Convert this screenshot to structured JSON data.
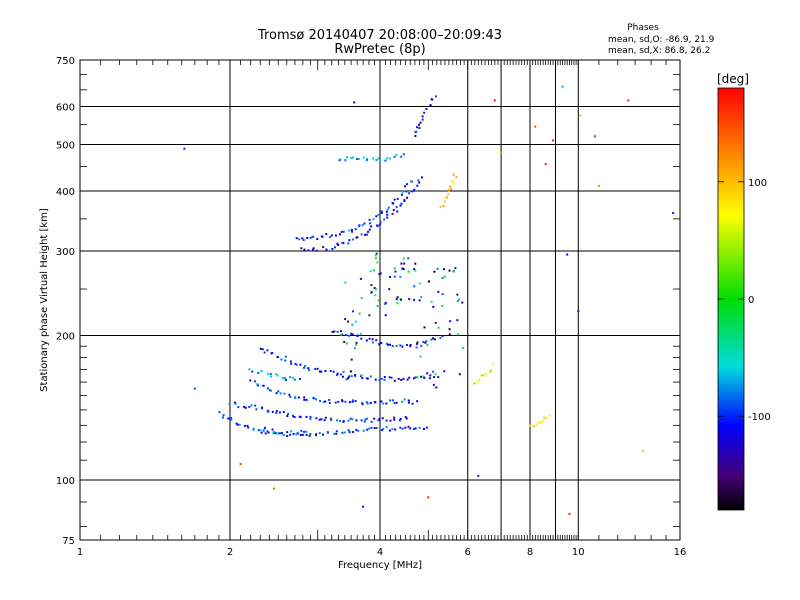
{
  "chart_data": {
    "type": "scatter",
    "title": "Tromsø 20140407 20:08:00–20:09:43",
    "subtitle": "RwPretec (8p)",
    "xlabel": "Frequency [MHz]",
    "ylabel": "Stationary phase Virtual Height [km]",
    "x_scale": "log",
    "y_scale": "log",
    "xlim": [
      1,
      16
    ],
    "ylim": [
      75,
      750
    ],
    "x_ticks": [
      1,
      2,
      4,
      6,
      8,
      10,
      16
    ],
    "y_ticks": [
      75,
      100,
      200,
      300,
      400,
      500,
      600,
      750
    ],
    "grid": true,
    "stats": {
      "header": "Phases",
      "line_o": "mean, sd,O: -86.9, 21.9",
      "line_x": "mean, sd,X:  86.8, 26.2"
    },
    "colorbar": {
      "label": "[deg]",
      "range": [
        -180,
        180
      ],
      "ticks": [
        100,
        0,
        -100
      ]
    },
    "traces": [
      {
        "x": [
          1.9,
          2.1,
          2.3,
          2.6,
          3.0,
          3.4,
          3.8,
          4.2,
          4.6,
          5.0
        ],
        "y": [
          138,
          130,
          126,
          124,
          125,
          126,
          127,
          128,
          128,
          128
        ],
        "phase": -100
      },
      {
        "x": [
          2.0,
          2.3,
          2.6,
          3.0,
          3.4,
          3.8,
          4.2,
          4.6
        ],
        "y": [
          144,
          141,
          137,
          134,
          133,
          133,
          134,
          134
        ],
        "phase": -105
      },
      {
        "x": [
          2.2,
          2.5,
          2.8,
          3.2,
          3.6,
          4.0,
          4.4,
          4.8
        ],
        "y": [
          160,
          152,
          148,
          146,
          145,
          145,
          146,
          145
        ],
        "phase": -95
      },
      {
        "x": [
          2.3,
          2.6,
          2.9,
          3.3,
          3.8,
          4.3,
          4.8,
          5.3
        ],
        "y": [
          188,
          178,
          170,
          166,
          163,
          162,
          163,
          165
        ],
        "phase": -110
      },
      {
        "x": [
          3.2,
          3.5,
          3.8,
          4.1,
          4.4,
          4.7,
          5.0,
          5.4
        ],
        "y": [
          205,
          200,
          196,
          192,
          190,
          190,
          195,
          200
        ],
        "phase": -108
      },
      {
        "x": [
          2.8,
          3.1,
          3.4,
          3.7,
          4.0,
          4.3,
          4.6,
          4.9
        ],
        "y": [
          302,
          303,
          312,
          325,
          342,
          365,
          395,
          430
        ],
        "phase": -112
      },
      {
        "x": [
          2.7,
          3.0,
          3.4,
          3.8,
          4.1,
          4.4,
          4.7
        ],
        "y": [
          318,
          320,
          328,
          345,
          365,
          392,
          425
        ],
        "phase": -98
      },
      {
        "x": [
          3.3,
          3.6,
          3.9,
          4.2,
          4.5
        ],
        "y": [
          465,
          468,
          462,
          470,
          475
        ],
        "phase": -70
      },
      {
        "x": [
          2.3,
          2.5,
          2.7,
          2.9
        ],
        "y": [
          128,
          126,
          125,
          126
        ],
        "phase": -75
      },
      {
        "x": [
          2.2,
          2.4,
          2.6,
          2.8
        ],
        "y": [
          170,
          166,
          163,
          162
        ],
        "phase": -72
      },
      {
        "x": [
          4.7,
          4.85,
          5.0,
          5.2
        ],
        "y": [
          520,
          560,
          600,
          640
        ],
        "phase": -115
      },
      {
        "x": [
          5.3,
          5.5,
          5.7
        ],
        "y": [
          370,
          400,
          440
        ],
        "phase": 100
      },
      {
        "x": [
          6.2,
          6.5,
          6.8
        ],
        "y": [
          160,
          165,
          175
        ],
        "phase": 60
      },
      {
        "x": [
          8.0,
          8.4,
          8.8
        ],
        "y": [
          130,
          132,
          138
        ],
        "phase": 70
      }
    ],
    "isolated_points": [
      {
        "x": 1.62,
        "y": 490,
        "phase": -100
      },
      {
        "x": 1.7,
        "y": 155,
        "phase": -90
      },
      {
        "x": 2.1,
        "y": 108,
        "phase": 150
      },
      {
        "x": 2.45,
        "y": 96,
        "phase": 140
      },
      {
        "x": 3.7,
        "y": 88,
        "phase": -110
      },
      {
        "x": 3.55,
        "y": 612,
        "phase": -110
      },
      {
        "x": 5.0,
        "y": 92,
        "phase": 170
      },
      {
        "x": 6.3,
        "y": 102,
        "phase": -100
      },
      {
        "x": 6.8,
        "y": 618,
        "phase": 170
      },
      {
        "x": 7.0,
        "y": 480,
        "phase": 120
      },
      {
        "x": 8.2,
        "y": 545,
        "phase": 150
      },
      {
        "x": 8.6,
        "y": 455,
        "phase": 170
      },
      {
        "x": 8.9,
        "y": 510,
        "phase": 170
      },
      {
        "x": 9.3,
        "y": 660,
        "phase": -70
      },
      {
        "x": 9.6,
        "y": 85,
        "phase": 170
      },
      {
        "x": 9.5,
        "y": 295,
        "phase": -110
      },
      {
        "x": 10.0,
        "y": 225,
        "phase": -130
      },
      {
        "x": 10.1,
        "y": 575,
        "phase": 100
      },
      {
        "x": 10.8,
        "y": 520,
        "phase": 170
      },
      {
        "x": 11.0,
        "y": 410,
        "phase": 120
      },
      {
        "x": 12.6,
        "y": 618,
        "phase": 170
      },
      {
        "x": 13.5,
        "y": 115,
        "phase": 100
      },
      {
        "x": 15.5,
        "y": 360,
        "phase": -100
      }
    ]
  }
}
